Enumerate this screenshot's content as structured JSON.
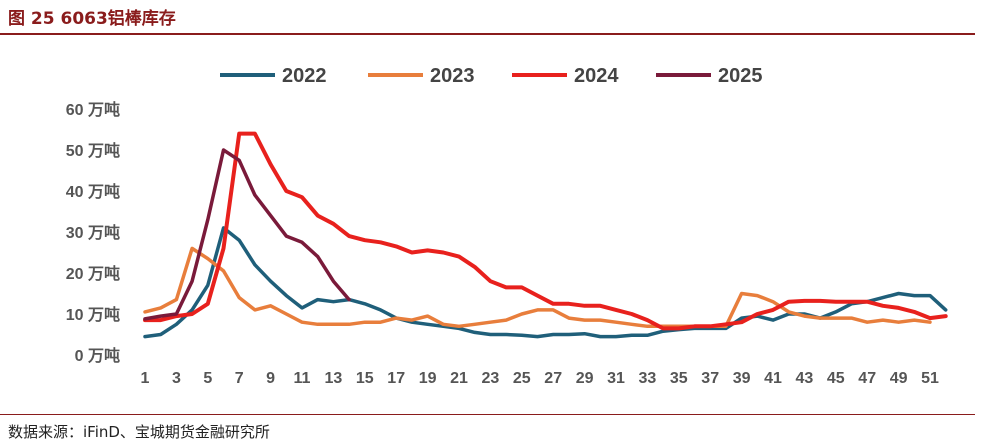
{
  "header": {
    "title": "图 25 6063铝棒库存"
  },
  "footer": {
    "source": "数据来源：iFinD、宝城期货金融研究所"
  },
  "colors": {
    "accent": "#8a1c1c"
  },
  "chart_data": {
    "type": "line",
    "title": "",
    "xlabel": "",
    "ylabel": "",
    "ylim": [
      0,
      60
    ],
    "y_ticks": [
      0,
      10,
      20,
      30,
      40,
      50,
      60
    ],
    "y_unit": "万吨",
    "x_ticks": [
      1,
      3,
      5,
      7,
      9,
      11,
      13,
      15,
      17,
      19,
      21,
      23,
      25,
      27,
      29,
      31,
      33,
      35,
      37,
      39,
      41,
      43,
      45,
      47,
      49,
      51
    ],
    "legend_position": "top-center",
    "grid": false,
    "series": [
      {
        "name": "2022",
        "color": "#1f5f7a",
        "x": [
          1,
          2,
          3,
          4,
          5,
          6,
          7,
          8,
          9,
          10,
          11,
          12,
          13,
          14,
          15,
          16,
          17,
          18,
          19,
          20,
          21,
          22,
          23,
          24,
          25,
          26,
          27,
          28,
          29,
          30,
          31,
          32,
          33,
          34,
          35,
          36,
          37,
          38,
          39,
          40,
          41,
          42,
          43,
          44,
          45,
          46,
          47,
          48,
          49,
          50,
          51,
          52
        ],
        "values": [
          4.5,
          5,
          7.5,
          11,
          17,
          31,
          28,
          22,
          18,
          14.5,
          11.5,
          13.5,
          13,
          13.5,
          12.5,
          11,
          9,
          8,
          7.5,
          7,
          6.5,
          5.5,
          5,
          5,
          4.8,
          4.5,
          5,
          5,
          5.2,
          4.5,
          4.5,
          4.8,
          4.8,
          5.8,
          6.2,
          6.5,
          6.5,
          6.5,
          9,
          9.5,
          8.5,
          10,
          10,
          9,
          10.5,
          12.5,
          13,
          14,
          15,
          14.5,
          14.5,
          11
        ]
      },
      {
        "name": "2023",
        "color": "#e87e3c",
        "x": [
          1,
          2,
          3,
          4,
          5,
          6,
          7,
          8,
          9,
          10,
          11,
          12,
          13,
          14,
          15,
          16,
          17,
          18,
          19,
          20,
          21,
          22,
          23,
          24,
          25,
          26,
          27,
          28,
          29,
          30,
          31,
          32,
          33,
          34,
          35,
          36,
          37,
          38,
          39,
          40,
          41,
          42,
          43,
          44,
          45,
          46,
          47,
          48,
          49,
          50,
          51
        ],
        "values": [
          10.5,
          11.5,
          13.5,
          26,
          23.5,
          20.5,
          14,
          11,
          12,
          10,
          8,
          7.5,
          7.5,
          7.5,
          8,
          8,
          9,
          8.5,
          9.5,
          7.5,
          7,
          7.5,
          8,
          8.5,
          10,
          11,
          11,
          9,
          8.5,
          8.5,
          8,
          7.5,
          7,
          7,
          7,
          7,
          7,
          7,
          15,
          14.5,
          13,
          10.5,
          9.5,
          9,
          9,
          9,
          8,
          8.5,
          8,
          8.5,
          8
        ]
      },
      {
        "name": "2024",
        "color": "#e8211d",
        "x": [
          1,
          2,
          3,
          4,
          5,
          6,
          7,
          8,
          9,
          10,
          11,
          12,
          13,
          14,
          15,
          16,
          17,
          18,
          19,
          20,
          21,
          22,
          23,
          24,
          25,
          26,
          27,
          28,
          29,
          30,
          31,
          32,
          33,
          34,
          35,
          36,
          37,
          38,
          39,
          40,
          41,
          42,
          43,
          44,
          45,
          46,
          47,
          48,
          49,
          50,
          51,
          52
        ],
        "values": [
          8.5,
          8.5,
          9.5,
          10,
          12.5,
          26,
          54,
          54,
          46.5,
          40,
          38.5,
          34,
          32,
          29,
          28,
          27.5,
          26.5,
          25,
          25.5,
          25,
          24,
          21.5,
          18,
          16.5,
          16.5,
          14.5,
          12.5,
          12.5,
          12,
          12,
          11,
          10,
          8.5,
          6.5,
          6.5,
          7,
          7,
          7.5,
          8,
          10,
          11,
          13,
          13.2,
          13.2,
          13,
          13,
          13,
          12,
          11.5,
          10.5,
          9,
          9.5
        ]
      },
      {
        "name": "2025",
        "color": "#7a1a3a",
        "x": [
          1,
          2,
          3,
          4,
          5,
          6,
          7,
          8,
          9,
          10,
          11,
          12,
          13,
          14
        ],
        "values": [
          8.8,
          9.5,
          10,
          18,
          33,
          50,
          47.5,
          39,
          34,
          29,
          27.5,
          24,
          18,
          13.5
        ]
      }
    ]
  }
}
